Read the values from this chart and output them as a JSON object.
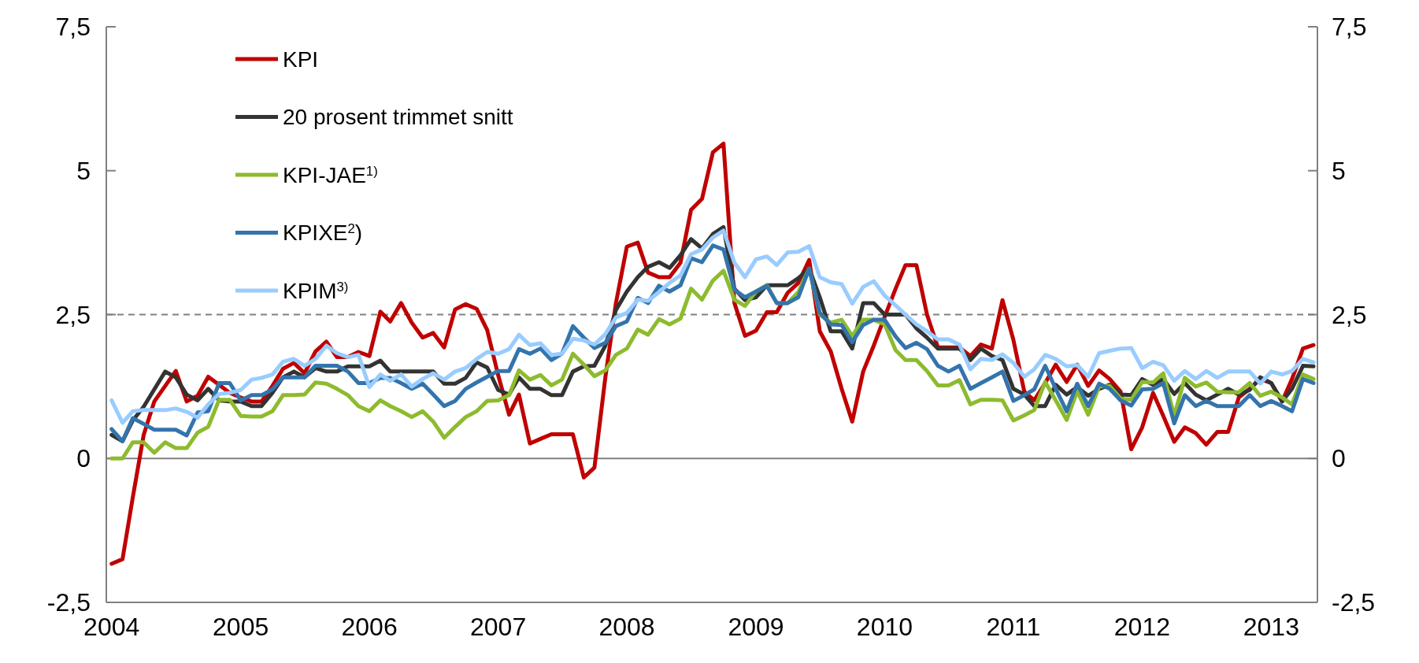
{
  "chart_data": {
    "type": "line",
    "x": [
      "2004-01",
      "2004-02",
      "2004-03",
      "2004-04",
      "2004-05",
      "2004-06",
      "2004-07",
      "2004-08",
      "2004-09",
      "2004-10",
      "2004-11",
      "2004-12",
      "2005-01",
      "2005-02",
      "2005-03",
      "2005-04",
      "2005-05",
      "2005-06",
      "2005-07",
      "2005-08",
      "2005-09",
      "2005-10",
      "2005-11",
      "2005-12",
      "2006-01",
      "2006-02",
      "2006-03",
      "2006-04",
      "2006-05",
      "2006-06",
      "2006-07",
      "2006-08",
      "2006-09",
      "2006-10",
      "2006-11",
      "2006-12",
      "2007-01",
      "2007-02",
      "2007-03",
      "2007-04",
      "2007-05",
      "2007-06",
      "2007-07",
      "2007-08",
      "2007-09",
      "2007-10",
      "2007-11",
      "2007-12",
      "2008-01",
      "2008-02",
      "2008-03",
      "2008-04",
      "2008-05",
      "2008-06",
      "2008-07",
      "2008-08",
      "2008-09",
      "2008-10",
      "2008-11",
      "2008-12",
      "2009-01",
      "2009-02",
      "2009-03",
      "2009-04",
      "2009-05",
      "2009-06",
      "2009-07",
      "2009-08",
      "2009-09",
      "2009-10",
      "2009-11",
      "2009-12",
      "2010-01",
      "2010-02",
      "2010-03",
      "2010-04",
      "2010-05",
      "2010-06",
      "2010-07",
      "2010-08",
      "2010-09",
      "2010-10",
      "2010-11",
      "2010-12",
      "2011-01",
      "2011-02",
      "2011-03",
      "2011-04",
      "2011-05",
      "2011-06",
      "2011-07",
      "2011-08",
      "2011-09",
      "2011-10",
      "2011-11",
      "2011-12",
      "2012-01",
      "2012-02",
      "2012-03",
      "2012-04",
      "2012-05",
      "2012-06",
      "2012-07",
      "2012-08",
      "2012-09",
      "2012-10",
      "2012-11",
      "2012-12",
      "2013-01",
      "2013-02",
      "2013-03",
      "2013-04",
      "2013-05"
    ],
    "series": [
      {
        "name": "KPI",
        "color": "#c00000",
        "values": [
          -1.83,
          -1.75,
          -0.68,
          0.41,
          0.99,
          1.26,
          1.52,
          0.99,
          1.09,
          1.42,
          1.28,
          1.14,
          1.06,
          0.99,
          0.99,
          1.26,
          1.56,
          1.66,
          1.48,
          1.86,
          2.03,
          1.76,
          1.76,
          1.85,
          1.78,
          2.55,
          2.38,
          2.7,
          2.36,
          2.1,
          2.18,
          1.93,
          2.59,
          2.68,
          2.6,
          2.23,
          1.45,
          0.76,
          1.11,
          0.26,
          0.34,
          0.42,
          0.42,
          0.42,
          -0.33,
          -0.16,
          1.41,
          2.7,
          3.68,
          3.75,
          3.23,
          3.15,
          3.15,
          3.4,
          4.32,
          4.51,
          5.32,
          5.47,
          2.7,
          2.13,
          2.22,
          2.54,
          2.54,
          2.88,
          3.05,
          3.45,
          2.21,
          1.86,
          1.21,
          0.64,
          1.51,
          1.96,
          2.46,
          2.95,
          3.36,
          3.36,
          2.5,
          1.93,
          1.93,
          1.93,
          1.78,
          1.98,
          1.91,
          2.75,
          2.06,
          1.16,
          1.01,
          1.31,
          1.63,
          1.33,
          1.63,
          1.26,
          1.53,
          1.38,
          1.16,
          0.16,
          0.54,
          1.14,
          0.74,
          0.29,
          0.54,
          0.44,
          0.24,
          0.46,
          0.46,
          1.06,
          1.21,
          1.38,
          1.31,
          0.99,
          1.38,
          1.91,
          1.97
        ]
      },
      {
        "name": "20 prosent trimmet snitt",
        "color": "#333333",
        "values": [
          0.41,
          0.3,
          0.66,
          0.9,
          1.2,
          1.51,
          1.41,
          1.11,
          1.01,
          1.21,
          1.01,
          0.99,
          0.99,
          0.91,
          0.91,
          1.14,
          1.41,
          1.51,
          1.41,
          1.57,
          1.51,
          1.51,
          1.6,
          1.6,
          1.6,
          1.7,
          1.51,
          1.51,
          1.51,
          1.51,
          1.51,
          1.3,
          1.3,
          1.4,
          1.67,
          1.58,
          1.19,
          1.11,
          1.41,
          1.21,
          1.21,
          1.1,
          1.1,
          1.51,
          1.6,
          1.61,
          1.96,
          2.58,
          2.9,
          3.15,
          3.33,
          3.41,
          3.31,
          3.53,
          3.81,
          3.65,
          3.9,
          4.02,
          2.95,
          2.75,
          2.8,
          3.01,
          3.01,
          3.01,
          3.13,
          3.3,
          2.8,
          2.21,
          2.21,
          1.91,
          2.7,
          2.7,
          2.5,
          2.5,
          2.5,
          2.26,
          2.1,
          1.91,
          1.91,
          1.91,
          1.71,
          1.91,
          1.78,
          1.71,
          1.21,
          1.11,
          0.91,
          0.91,
          1.28,
          1.11,
          1.24,
          1.09,
          1.21,
          1.28,
          1.11,
          1.1,
          1.38,
          1.28,
          1.38,
          1.12,
          1.31,
          1.11,
          1.01,
          1.11,
          1.21,
          1.11,
          1.19,
          1.41,
          1.31,
          0.99,
          1.21,
          1.61,
          1.6
        ]
      },
      {
        "name": "KPI-JAE$^{1)}$",
        "color": "#8dbb2e",
        "values": [
          0,
          0,
          0.28,
          0.28,
          0.1,
          0.28,
          0.18,
          0.18,
          0.45,
          0.55,
          1.02,
          1.02,
          0.74,
          0.73,
          0.73,
          0.82,
          1.1,
          1.1,
          1.11,
          1.32,
          1.3,
          1.21,
          1.1,
          0.91,
          0.82,
          1.01,
          0.91,
          0.82,
          0.72,
          0.82,
          0.64,
          0.36,
          0.55,
          0.72,
          0.82,
          1,
          1.01,
          1.1,
          1.53,
          1.37,
          1.45,
          1.27,
          1.37,
          1.82,
          1.63,
          1.43,
          1.53,
          1.8,
          1.91,
          2.24,
          2.15,
          2.42,
          2.33,
          2.43,
          2.95,
          2.76,
          3.09,
          3.26,
          2.76,
          2.65,
          2.9,
          3.01,
          2.7,
          2.7,
          2.89,
          3.3,
          2.5,
          2.36,
          2.41,
          2.13,
          2.41,
          2.41,
          2.33,
          1.88,
          1.71,
          1.71,
          1.52,
          1.27,
          1.27,
          1.36,
          0.94,
          1.02,
          1.02,
          1.01,
          0.66,
          0.75,
          0.84,
          1.33,
          1.01,
          0.67,
          1.17,
          0.76,
          1.25,
          1.26,
          1.04,
          1.02,
          1.33,
          1.32,
          1.48,
          0.74,
          1.4,
          1.25,
          1.32,
          1.16,
          1.15,
          1.15,
          1.31,
          1.09,
          1.16,
          1.06,
          0.94,
          1.46,
          1.38
        ]
      },
      {
        "name": "KPIXE$^{2}$)",
        "color": "#3474ac",
        "values": [
          0.51,
          0.3,
          0.7,
          0.6,
          0.5,
          0.5,
          0.5,
          0.4,
          0.8,
          0.82,
          1.31,
          1.31,
          1.01,
          1.1,
          1.1,
          1.2,
          1.41,
          1.41,
          1.41,
          1.61,
          1.61,
          1.61,
          1.51,
          1.31,
          1.31,
          1.4,
          1.4,
          1.31,
          1.21,
          1.3,
          1.11,
          0.91,
          1,
          1.21,
          1.32,
          1.42,
          1.52,
          1.52,
          1.9,
          1.82,
          1.91,
          1.71,
          1.82,
          2.3,
          2.1,
          1.92,
          2.01,
          2.3,
          2.38,
          2.79,
          2.7,
          3,
          2.9,
          3.01,
          3.48,
          3.41,
          3.7,
          3.63,
          2.93,
          2.8,
          2.9,
          3,
          2.7,
          2.7,
          2.8,
          3.3,
          2.53,
          2.33,
          2.32,
          2.02,
          2.32,
          2.41,
          2.41,
          2.12,
          1.92,
          2.01,
          1.9,
          1.61,
          1.51,
          1.61,
          1.21,
          1.31,
          1.41,
          1.51,
          1,
          1.1,
          1.2,
          1.61,
          1.21,
          0.82,
          1.3,
          0.91,
          1.3,
          1.21,
          1.01,
          0.92,
          1.2,
          1.21,
          1.31,
          0.61,
          1.1,
          0.91,
          1,
          0.91,
          0.91,
          0.91,
          1.1,
          0.91,
          1,
          0.91,
          0.82,
          1.38,
          1.31
        ]
      },
      {
        "name": "KPIM$^{3)}$",
        "color": "#99ccff",
        "values": [
          1.01,
          0.62,
          0.82,
          0.84,
          0.84,
          0.84,
          0.87,
          0.81,
          0.71,
          0.94,
          1.12,
          1.14,
          1.19,
          1.37,
          1.4,
          1.46,
          1.68,
          1.73,
          1.61,
          1.73,
          1.96,
          1.83,
          1.76,
          1.8,
          1.24,
          1.46,
          1.35,
          1.46,
          1.25,
          1.38,
          1.48,
          1.37,
          1.51,
          1.57,
          1.73,
          1.85,
          1.82,
          1.9,
          2.15,
          1.97,
          2,
          1.8,
          1.82,
          2.08,
          2.05,
          1.98,
          2.16,
          2.45,
          2.53,
          2.76,
          2.74,
          2.89,
          3.05,
          3.18,
          3.55,
          3.63,
          3.84,
          3.96,
          3.4,
          3.15,
          3.46,
          3.51,
          3.36,
          3.58,
          3.59,
          3.69,
          3.15,
          3.06,
          3.03,
          2.69,
          2.98,
          3.08,
          2.83,
          2.66,
          2.5,
          2.33,
          2.21,
          2.07,
          2.07,
          1.98,
          1.55,
          1.73,
          1.71,
          1.81,
          1.66,
          1.42,
          1.55,
          1.8,
          1.73,
          1.6,
          1.62,
          1.42,
          1.83,
          1.87,
          1.91,
          1.92,
          1.57,
          1.68,
          1.62,
          1.35,
          1.52,
          1.38,
          1.52,
          1.4,
          1.51,
          1.51,
          1.51,
          1.3,
          1.51,
          1.46,
          1.52,
          1.73,
          1.67
        ]
      }
    ],
    "xlim": [
      "2003-12-17",
      "2013-05-12"
    ],
    "xticks": [
      {
        "value": "2004-01",
        "label": "2004"
      },
      {
        "value": "2005-01",
        "label": "2005"
      },
      {
        "value": "2006-01",
        "label": "2006"
      },
      {
        "value": "2007-01",
        "label": "2007"
      },
      {
        "value": "2008-01",
        "label": "2008"
      },
      {
        "value": "2009-01",
        "label": "2009"
      },
      {
        "value": "2010-01",
        "label": "2010"
      },
      {
        "value": "2011-01",
        "label": "2011"
      },
      {
        "value": "2012-01",
        "label": "2012"
      },
      {
        "value": "2013-01",
        "label": "2013"
      }
    ],
    "ylim": [
      -2.5,
      7.5
    ],
    "yticks": [
      {
        "value": -2.5,
        "label": "-2,5"
      },
      0,
      {
        "value": 2.5,
        "label": "2,5"
      },
      5,
      {
        "value": 7.5,
        "label": "7,5"
      }
    ],
    "y2lim": [
      -2.5,
      7.5
    ],
    "y2ticks": [
      {
        "value": -2.5,
        "label": "-2,5"
      },
      0,
      {
        "value": 2.5,
        "label": "2,5"
      },
      5,
      {
        "value": 7.5,
        "label": "7,5"
      }
    ],
    "ref_lines": [
      {
        "axis": "y",
        "value": 0,
        "color": "#808080",
        "line_style": "solid"
      },
      {
        "axis": "y",
        "value": 2.5,
        "color": "#808080",
        "line_style": "dashed"
      }
    ],
    "legend": "top left",
    "line_style": "solid"
  }
}
